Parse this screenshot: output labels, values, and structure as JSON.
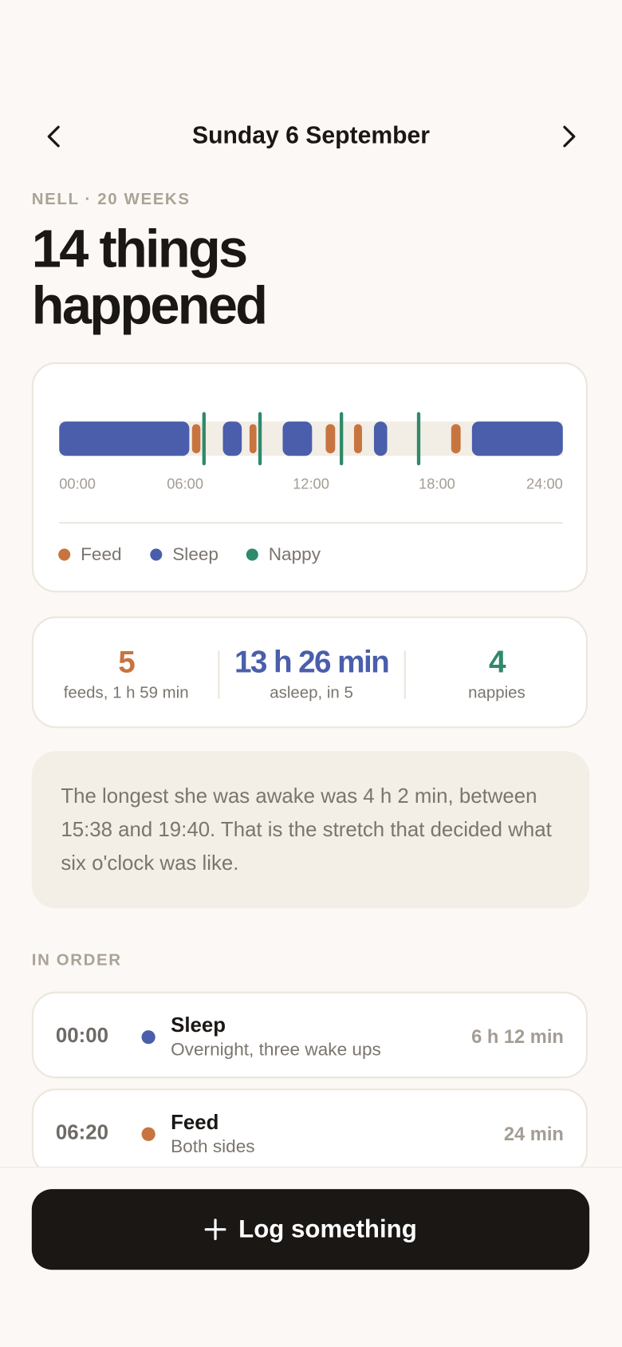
{
  "header": {
    "title": "Sunday 6 September",
    "eyebrow": "NELL · 20 WEEKS",
    "headline": "14 things happened"
  },
  "chart_data": {
    "type": "timeline",
    "xlim": [
      0,
      24
    ],
    "xticks": [
      {
        "value": 0,
        "label": "00:00"
      },
      {
        "value": 6,
        "label": "06:00"
      },
      {
        "value": 12,
        "label": "12:00"
      },
      {
        "value": 18,
        "label": "18:00"
      },
      {
        "value": 24,
        "label": "24:00"
      }
    ],
    "series": [
      {
        "name": "Feed",
        "color": "#c87440",
        "segments": [
          [
            6.33,
            6.73
          ],
          [
            9.07,
            9.4
          ],
          [
            12.7,
            13.15
          ],
          [
            14.05,
            14.43
          ],
          [
            18.68,
            19.13
          ]
        ]
      },
      {
        "name": "Sleep",
        "color": "#4a5eab",
        "segments": [
          [
            0,
            6.2
          ],
          [
            7.8,
            8.7
          ],
          [
            10.65,
            12.05
          ],
          [
            15.0,
            15.63
          ],
          [
            19.67,
            24
          ]
        ]
      },
      {
        "name": "Nappy",
        "color": "#2e8a6a",
        "values": [
          6.9,
          9.57,
          13.45,
          17.13
        ]
      }
    ]
  },
  "summary": [
    {
      "value": 5,
      "label": "feeds, 1 h 59 min"
    },
    {
      "value": "13 h 26 min",
      "label": "asleep, in 5"
    },
    {
      "value": 4,
      "label": "nappies"
    }
  ],
  "insight": "The longest she was awake was 4 h 2 min, between 15:38 and 19:40. That is the stretch that decided what six o'clock was like.",
  "list": {
    "title": "IN ORDER",
    "items": [
      {
        "time": "00:00",
        "kind": "Sleep",
        "note": "Overnight, three wake ups",
        "duration": "6 h 12 min"
      },
      {
        "time": "06:20",
        "kind": "Feed",
        "note": "Both sides",
        "duration": "24 min"
      }
    ]
  },
  "button": "Log something"
}
